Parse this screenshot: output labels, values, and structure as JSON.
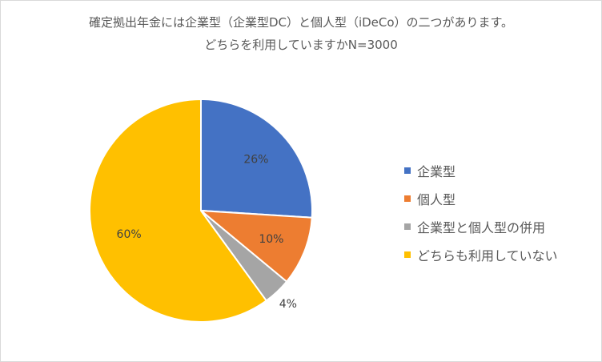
{
  "chart_data": {
    "type": "pie",
    "title_lines": [
      "確定拠出年金には企業型（企業型DC）と個人型（iDeCo）の二つがあります。",
      "どちらを利用していますかN=3000"
    ],
    "slices": [
      {
        "label": "企業型",
        "value": 26,
        "value_label": "26%",
        "color": "#4472C4"
      },
      {
        "label": "個人型",
        "value": 10,
        "value_label": "10%",
        "color": "#ED7D31"
      },
      {
        "label": "企業型と個人型の併用",
        "value": 4,
        "value_label": "4%",
        "color": "#A5A5A5"
      },
      {
        "label": "どちらも利用していない",
        "value": 60,
        "value_label": "60%",
        "color": "#FFC000"
      }
    ],
    "legend_position": "right"
  }
}
